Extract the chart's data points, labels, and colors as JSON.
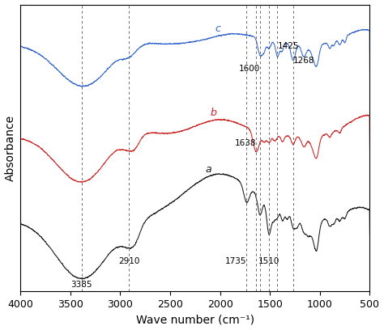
{
  "xlabel": "Wave number (cm⁻¹)",
  "ylabel": "Absorbance",
  "xlim": [
    4000,
    500
  ],
  "x_ticks": [
    4000,
    3500,
    3000,
    2500,
    2000,
    1500,
    1000,
    500
  ],
  "dashed_lines": [
    3385,
    2910,
    1735,
    1638,
    1600,
    1510,
    1425,
    1268
  ],
  "colors": {
    "a": "#1a1a1a",
    "b": "#cc2222",
    "c": "#3366cc"
  },
  "background": "#ffffff",
  "ann_bottom": {
    "3385": [
      3385,
      "3385"
    ],
    "2910": [
      2910,
      "2910"
    ],
    "1735": [
      1735,
      "1735"
    ],
    "1510": [
      1510,
      "1510"
    ]
  },
  "ann_mid_c": {
    "1600": [
      1600,
      "1600"
    ],
    "1425": [
      1425,
      "1425"
    ],
    "1268": [
      1268,
      "1268"
    ]
  },
  "ann_mid_b": {
    "1638": [
      1638,
      "1638"
    ]
  }
}
